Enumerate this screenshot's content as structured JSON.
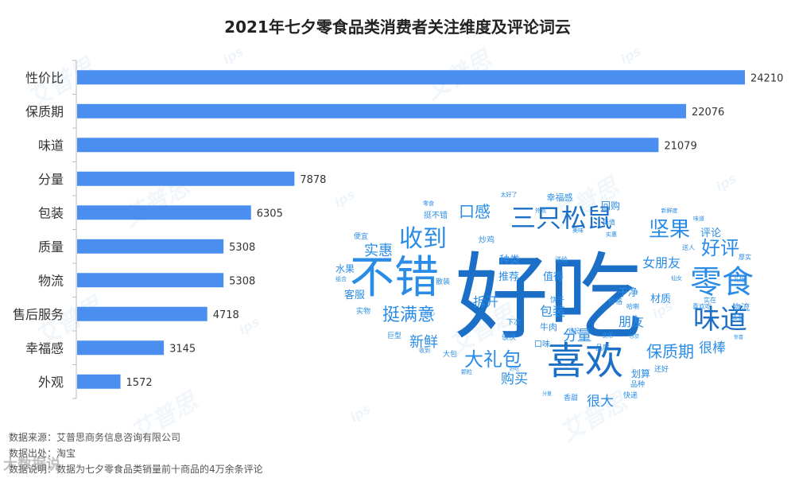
{
  "title": "2021年七夕零食品类消费者关注维度及评论词云",
  "chart_data": [
    {
      "type": "bar",
      "orientation": "horizontal",
      "title": "2021年七夕零食品类消费者关注维度及评论词云",
      "categories": [
        "性价比",
        "保质期",
        "味道",
        "分量",
        "包装",
        "质量",
        "物流",
        "售后服务",
        "幸福感",
        "外观"
      ],
      "values": [
        24210,
        22076,
        21079,
        7878,
        6305,
        5308,
        5308,
        4718,
        3145,
        1572
      ],
      "xlim": [
        0,
        24210
      ],
      "color": "#4a8ef0",
      "grid": false
    },
    {
      "type": "wordcloud",
      "words": [
        {
          "text": "好吃",
          "weight": 100
        },
        {
          "text": "不错",
          "weight": 60
        },
        {
          "text": "喜欢",
          "weight": 48
        },
        {
          "text": "零食",
          "weight": 40
        },
        {
          "text": "味道",
          "weight": 34
        },
        {
          "text": "三只松鼠",
          "weight": 32
        },
        {
          "text": "收到",
          "weight": 30
        },
        {
          "text": "坚果",
          "weight": 26
        },
        {
          "text": "好评",
          "weight": 24
        },
        {
          "text": "大礼包",
          "weight": 24
        },
        {
          "text": "挺满意",
          "weight": 22
        },
        {
          "text": "口感",
          "weight": 20
        },
        {
          "text": "保质期",
          "weight": 20
        },
        {
          "text": "新鲜",
          "weight": 18
        },
        {
          "text": "分量",
          "weight": 18
        },
        {
          "text": "实惠",
          "weight": 18
        },
        {
          "text": "购买",
          "weight": 17
        },
        {
          "text": "很大",
          "weight": 17
        },
        {
          "text": "很棒",
          "weight": 17
        },
        {
          "text": "拆开",
          "weight": 16
        },
        {
          "text": "包装",
          "weight": 16
        },
        {
          "text": "朋友",
          "weight": 16
        },
        {
          "text": "女朋友",
          "weight": 16
        },
        {
          "text": "种类",
          "weight": 13
        },
        {
          "text": "推荐",
          "weight": 13
        },
        {
          "text": "值得",
          "weight": 13
        },
        {
          "text": "干净",
          "weight": 13
        },
        {
          "text": "材质",
          "weight": 13
        },
        {
          "text": "评论",
          "weight": 13
        },
        {
          "text": "回购",
          "weight": 12
        },
        {
          "text": "幸福感",
          "weight": 11
        },
        {
          "text": "客服",
          "weight": 13
        },
        {
          "text": "水果",
          "weight": 12
        },
        {
          "text": "物流",
          "weight": 11
        },
        {
          "text": "牛肉",
          "weight": 11
        },
        {
          "text": "划算",
          "weight": 12
        },
        {
          "text": "口味",
          "weight": 10
        },
        {
          "text": "挺不错",
          "weight": 10
        },
        {
          "text": "炒鸡",
          "weight": 10
        },
        {
          "text": "下次",
          "weight": 9
        },
        {
          "text": "很快",
          "weight": 9
        },
        {
          "text": "饼干",
          "weight": 9
        },
        {
          "text": "巨型",
          "weight": 9
        },
        {
          "text": "实物",
          "weight": 9
        },
        {
          "text": "散装",
          "weight": 9
        },
        {
          "text": "便宜",
          "weight": 9
        },
        {
          "text": "大包",
          "weight": 9
        },
        {
          "text": "香甜",
          "weight": 9
        },
        {
          "text": "快递",
          "weight": 9
        },
        {
          "text": "品种",
          "weight": 9
        },
        {
          "text": "价格",
          "weight": 9
        },
        {
          "text": "还好",
          "weight": 9
        },
        {
          "text": "品质",
          "weight": 9
        },
        {
          "text": "哈喇",
          "weight": 8
        },
        {
          "text": "质量",
          "weight": 8
        },
        {
          "text": "喜欢吃",
          "weight": 8
        },
        {
          "text": "送给",
          "weight": 8
        },
        {
          "text": "挺值",
          "weight": 8
        },
        {
          "text": "送人",
          "weight": 8
        },
        {
          "text": "厚实",
          "weight": 8
        },
        {
          "text": "实在",
          "weight": 8
        },
        {
          "text": "开心",
          "weight": 7
        },
        {
          "text": "组合",
          "weight": 7
        },
        {
          "text": "美味",
          "weight": 7
        },
        {
          "text": "新鲜度",
          "weight": 7
        },
        {
          "text": "味道",
          "weight": 7
        },
        {
          "text": "外观",
          "weight": 7
        },
        {
          "text": "实惠",
          "weight": 7
        },
        {
          "text": "很好",
          "weight": 7
        },
        {
          "text": "收到",
          "weight": 7
        },
        {
          "text": "零食",
          "weight": 7
        },
        {
          "text": "太好了",
          "weight": 7
        },
        {
          "text": "食用",
          "weight": 7
        },
        {
          "text": "颗粒",
          "weight": 7
        },
        {
          "text": "仙女",
          "weight": 7
        },
        {
          "text": "礼物",
          "weight": 7
        },
        {
          "text": "感觉",
          "weight": 6
        },
        {
          "text": "分量",
          "weight": 6
        },
        {
          "text": "好吃",
          "weight": 6
        },
        {
          "text": "惊喜",
          "weight": 6
        }
      ]
    }
  ],
  "footer": {
    "line1": "数据来源：艾普思商务信息咨询有限公司",
    "line2": "数据出处：淘宝",
    "line3": "数据说明：数据为七夕零食品类销量前十商品的4万余条评论"
  },
  "watermark": {
    "text": "艾普思",
    "logo": "ips",
    "brand": "大数据说"
  },
  "colors": {
    "bar": "#4a8ef0",
    "cloud": "#2a8ce6",
    "axis": "#bbbbbb"
  }
}
